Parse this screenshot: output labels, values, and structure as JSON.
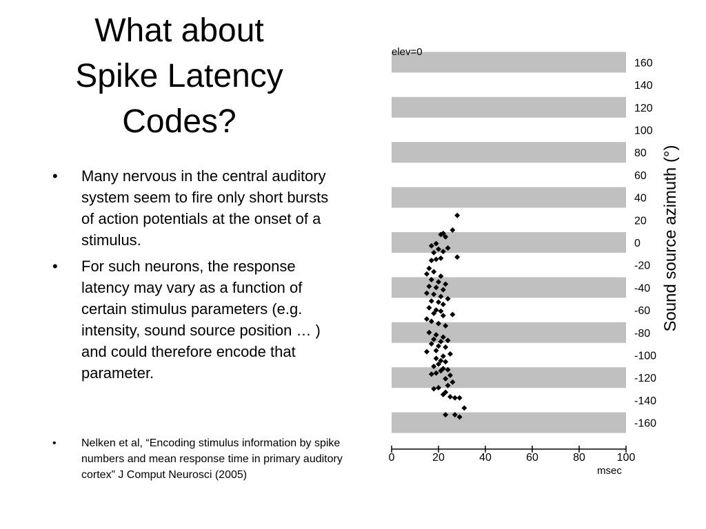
{
  "slide": {
    "title_lines": [
      "What about",
      "Spike Latency",
      "Codes?"
    ],
    "bullets": [
      "Many nervous in the central auditory system seem to fire only short bursts of action potentials at the onset of a stimulus.",
      "For such neurons, the response latency may vary as a function of certain stimulus parameters (e.g. intensity, sound source position … ) and could therefore encode that parameter."
    ],
    "bullet_char": "•",
    "reference": "Nelken et al, “Encoding stimulus information by spike numbers and mean response time in primary auditory cortex” J Comput Neurosci (2005)"
  },
  "chart_data": {
    "type": "scatter",
    "title": "elev=0",
    "xlabel": "msec",
    "ylabel": "Sound source azimuth (°)",
    "xlim": [
      0,
      100
    ],
    "ylim": [
      -170,
      170
    ],
    "x_ticks": [
      0,
      20,
      40,
      60,
      80,
      100
    ],
    "y_ticks": [
      160,
      140,
      120,
      100,
      80,
      60,
      40,
      20,
      0,
      -20,
      -40,
      -60,
      -80,
      -100,
      -120,
      -140,
      -160
    ],
    "band_centers": [
      160,
      120,
      80,
      40,
      0,
      -40,
      -80,
      -120,
      -160
    ],
    "band_color": "#c0c0c0",
    "marker_color": "#000000",
    "grid": false,
    "points": [
      {
        "x": 28,
        "y": 24
      },
      {
        "x": 26,
        "y": 11
      },
      {
        "x": 22,
        "y": 8
      },
      {
        "x": 21,
        "y": 7
      },
      {
        "x": 23,
        "y": 5
      },
      {
        "x": 19,
        "y": -1
      },
      {
        "x": 17,
        "y": -3
      },
      {
        "x": 24,
        "y": -5
      },
      {
        "x": 20,
        "y": -6
      },
      {
        "x": 22,
        "y": -8
      },
      {
        "x": 18,
        "y": -9
      },
      {
        "x": 28,
        "y": -13
      },
      {
        "x": 21,
        "y": -14
      },
      {
        "x": 19,
        "y": -15
      },
      {
        "x": 17,
        "y": -16
      },
      {
        "x": 16,
        "y": -23
      },
      {
        "x": 18,
        "y": -26
      },
      {
        "x": 15,
        "y": -28
      },
      {
        "x": 21,
        "y": -30
      },
      {
        "x": 17,
        "y": -33
      },
      {
        "x": 20,
        "y": -35
      },
      {
        "x": 23,
        "y": -37
      },
      {
        "x": 16,
        "y": -39
      },
      {
        "x": 19,
        "y": -40
      },
      {
        "x": 22,
        "y": -42
      },
      {
        "x": 15,
        "y": -45
      },
      {
        "x": 18,
        "y": -46
      },
      {
        "x": 21,
        "y": -48
      },
      {
        "x": 24,
        "y": -50
      },
      {
        "x": 17,
        "y": -52
      },
      {
        "x": 20,
        "y": -53
      },
      {
        "x": 22,
        "y": -55
      },
      {
        "x": 16,
        "y": -58
      },
      {
        "x": 19,
        "y": -60
      },
      {
        "x": 21,
        "y": -61
      },
      {
        "x": 18,
        "y": -63
      },
      {
        "x": 26,
        "y": -64
      },
      {
        "x": 22,
        "y": -65
      },
      {
        "x": 15,
        "y": -68
      },
      {
        "x": 17,
        "y": -70
      },
      {
        "x": 20,
        "y": -72
      },
      {
        "x": 23,
        "y": -74
      },
      {
        "x": 16,
        "y": -80
      },
      {
        "x": 19,
        "y": -82
      },
      {
        "x": 22,
        "y": -84
      },
      {
        "x": 18,
        "y": -86
      },
      {
        "x": 24,
        "y": -87
      },
      {
        "x": 21,
        "y": -88
      },
      {
        "x": 17,
        "y": -90
      },
      {
        "x": 20,
        "y": -92
      },
      {
        "x": 23,
        "y": -93
      },
      {
        "x": 19,
        "y": -96
      },
      {
        "x": 15,
        "y": -97
      },
      {
        "x": 25,
        "y": -99
      },
      {
        "x": 22,
        "y": -101
      },
      {
        "x": 19,
        "y": -103
      },
      {
        "x": 21,
        "y": -105
      },
      {
        "x": 23,
        "y": -106
      },
      {
        "x": 20,
        "y": -108
      },
      {
        "x": 18,
        "y": -110
      },
      {
        "x": 22,
        "y": -112
      },
      {
        "x": 24,
        "y": -113
      },
      {
        "x": 21,
        "y": -114
      },
      {
        "x": 19,
        "y": -116
      },
      {
        "x": 17,
        "y": -117
      },
      {
        "x": 25,
        "y": -118
      },
      {
        "x": 23,
        "y": -121
      },
      {
        "x": 26,
        "y": -124
      },
      {
        "x": 24,
        "y": -127
      },
      {
        "x": 20,
        "y": -129
      },
      {
        "x": 18,
        "y": -130
      },
      {
        "x": 23,
        "y": -133
      },
      {
        "x": 22,
        "y": -135
      },
      {
        "x": 25,
        "y": -137
      },
      {
        "x": 27,
        "y": -138
      },
      {
        "x": 29,
        "y": -138
      },
      {
        "x": 31,
        "y": -147
      },
      {
        "x": 23,
        "y": -153
      },
      {
        "x": 27,
        "y": -153
      },
      {
        "x": 29,
        "y": -155
      }
    ]
  }
}
